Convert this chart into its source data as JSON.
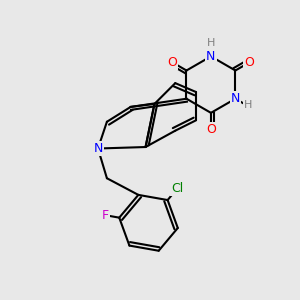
{
  "bg_color": "#e8e8e8",
  "bond_color": "#000000",
  "atom_colors": {
    "O": "#ff0000",
    "N": "#0000ff",
    "H": "#808080",
    "Cl": "#008000",
    "F": "#cc00cc"
  }
}
